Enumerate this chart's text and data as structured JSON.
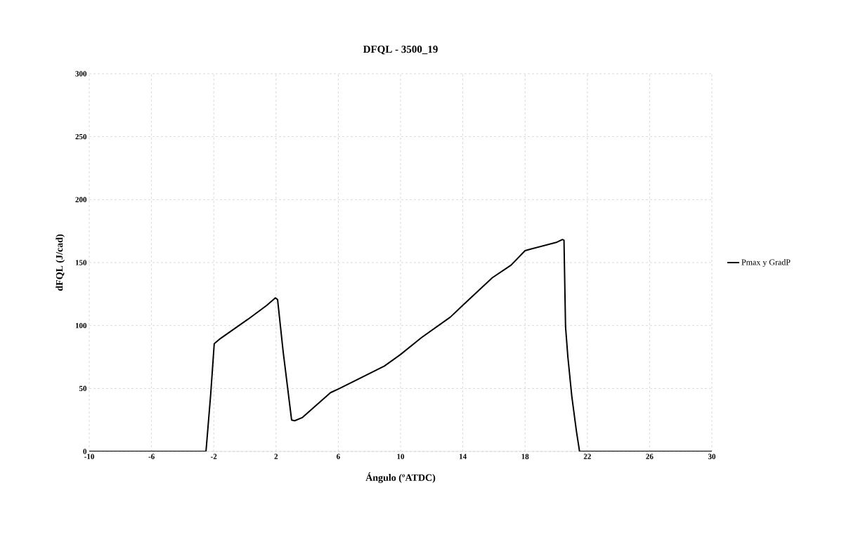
{
  "chart_data": {
    "type": "line",
    "title": "DFQL - 3500_19",
    "xlabel": "Ángulo (ºATDC)",
    "ylabel": "dFQL (J/cad)",
    "series": [
      {
        "name": "Pmax y GradP",
        "color": "#000000",
        "x": [
          -10,
          -6,
          -2.8,
          -2.5,
          -2.2,
          -1.97,
          -1.65,
          0.2,
          1.4,
          1.96,
          2.1,
          2.46,
          3.0,
          3.2,
          3.7,
          5.5,
          6.07,
          8.96,
          10.0,
          11.35,
          13.2,
          14.05,
          15.9,
          17.1,
          18.0,
          18.45,
          20.0,
          20.4,
          20.5,
          20.6,
          20.75,
          21.0,
          21.3,
          21.5,
          22,
          26,
          30
        ],
        "values": [
          0,
          0,
          0,
          0,
          45,
          85.6,
          89,
          105,
          116,
          122,
          120.6,
          79,
          25,
          24.4,
          27,
          46.7,
          50,
          67.8,
          77,
          90.5,
          106.7,
          116.7,
          138,
          148,
          159.5,
          161,
          166,
          168.3,
          167.8,
          99,
          75,
          44,
          16,
          0,
          0,
          0,
          0
        ]
      }
    ],
    "xlim": [
      -10,
      30
    ],
    "ylim": [
      0,
      300
    ],
    "xticks": [
      -10,
      -6,
      -2,
      2,
      6,
      10,
      14,
      18,
      22,
      26,
      30
    ],
    "yticks": [
      0,
      50,
      100,
      150,
      200,
      250,
      300
    ],
    "grid": true,
    "legend": "right",
    "marker": "none",
    "line_style": "solid"
  }
}
